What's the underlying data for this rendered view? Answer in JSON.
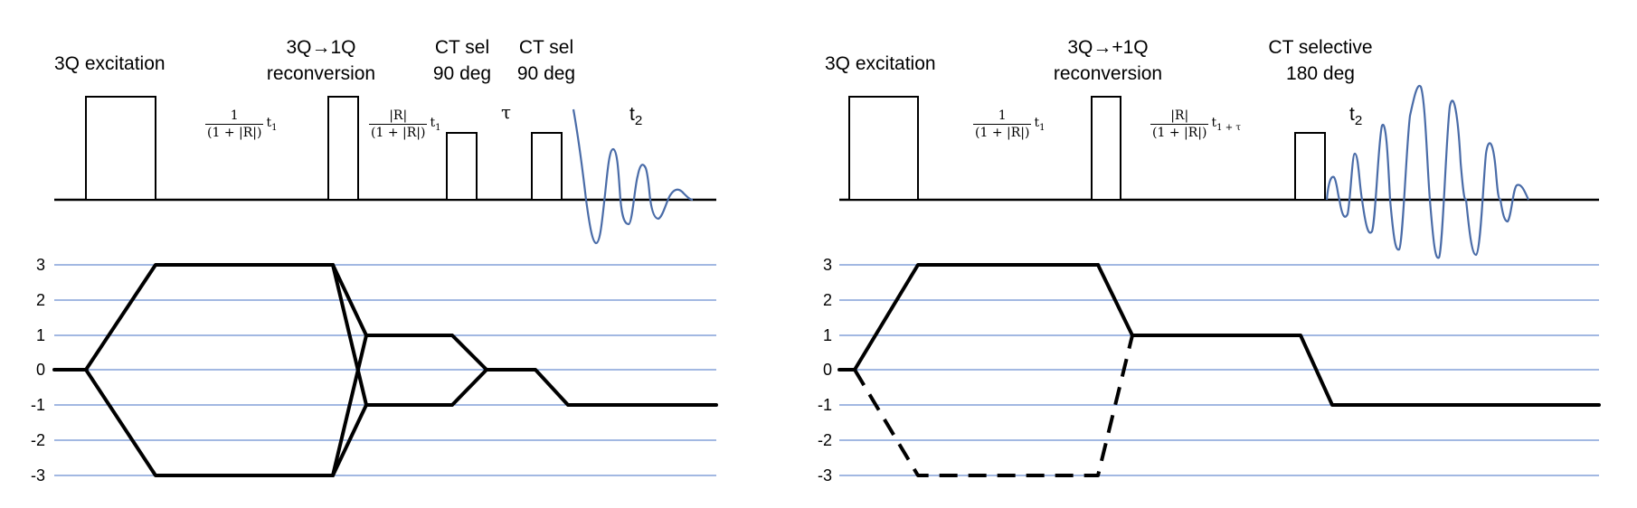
{
  "left": {
    "labels": {
      "excitation": "3Q excitation",
      "reconversion_line1": "3Q→1Q",
      "reconversion_line2": "reconversion",
      "ctsel1_line1": "CT sel",
      "ctsel1_line2": "90 deg",
      "ctsel2_line1": "CT sel",
      "ctsel2_line2": "90 deg",
      "tau": "τ",
      "t2_base": "t",
      "t2_sub": "2"
    },
    "delay1": {
      "num": "1",
      "den": "(1 + |R|)",
      "suffix_base": "t",
      "suffix_sub": "1"
    },
    "delay2": {
      "num": "|R|",
      "den": "(1 + |R|)",
      "suffix_base": "t",
      "suffix_sub": "1"
    }
  },
  "right": {
    "labels": {
      "excitation": "3Q excitation",
      "reconversion_line1": "3Q→+1Q",
      "reconversion_line2": "reconversion",
      "ctsel_line1": "CT selective",
      "ctsel_line2": "180 deg",
      "t2_base": "t",
      "t2_sub": "2"
    },
    "delay1": {
      "num": "1",
      "den": "(1 + |R|)",
      "suffix_base": "t",
      "suffix_sub": "1"
    },
    "delay2": {
      "num": "|R|",
      "den": "(1 + |R|)",
      "suffix_base": "t",
      "suffix_sub": "1 + τ"
    }
  },
  "coherence_levels": [
    "3",
    "2",
    "1",
    "0",
    "-1",
    "-2",
    "-3"
  ],
  "colors": {
    "gridline": "#4472c4",
    "fid": "#4a6ca8",
    "pulse": "#000000",
    "path": "#000000"
  }
}
